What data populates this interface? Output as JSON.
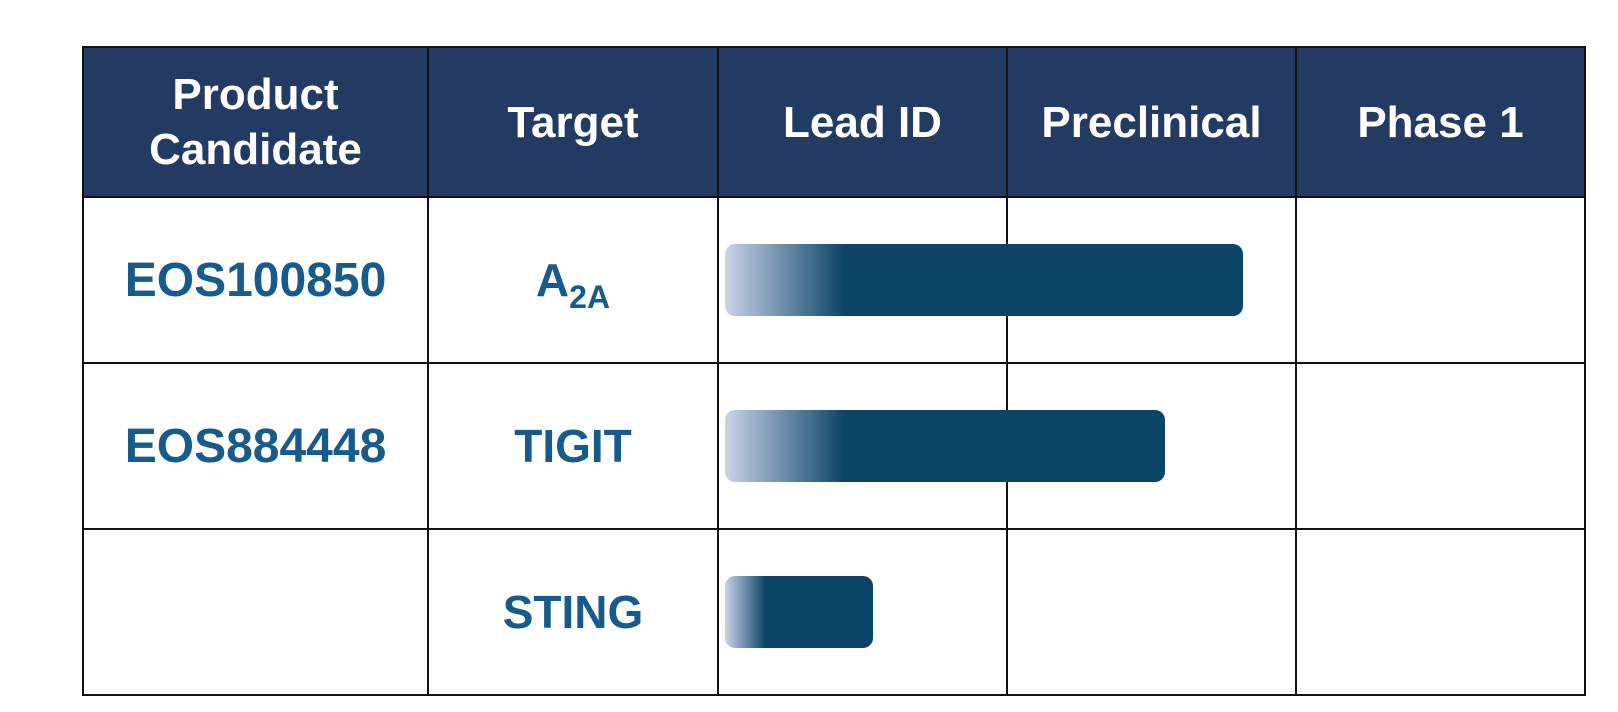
{
  "table": {
    "headers": {
      "product_candidate_line1": "Product",
      "product_candidate_line2": "Candidate",
      "target": "Target",
      "lead_id": "Lead ID",
      "preclinical": "Preclinical",
      "phase1": "Phase 1"
    },
    "rows": [
      {
        "candidate": "EOS100850",
        "target_main": "A",
        "target_sub": "2A",
        "progress_stages": 1.85
      },
      {
        "candidate": "EOS884448",
        "target_main": "TIGIT",
        "target_sub": "",
        "progress_stages": 1.57
      },
      {
        "candidate": "",
        "target_main": "STING",
        "target_sub": "",
        "progress_stages": 0.53
      }
    ]
  },
  "colors": {
    "header_background": "#233a63",
    "header_text": "#ffffff",
    "body_text": "#175a8c",
    "bar": "#0b4466",
    "bar_fade": "#c9d3ea",
    "grid_line": "#111111"
  }
}
